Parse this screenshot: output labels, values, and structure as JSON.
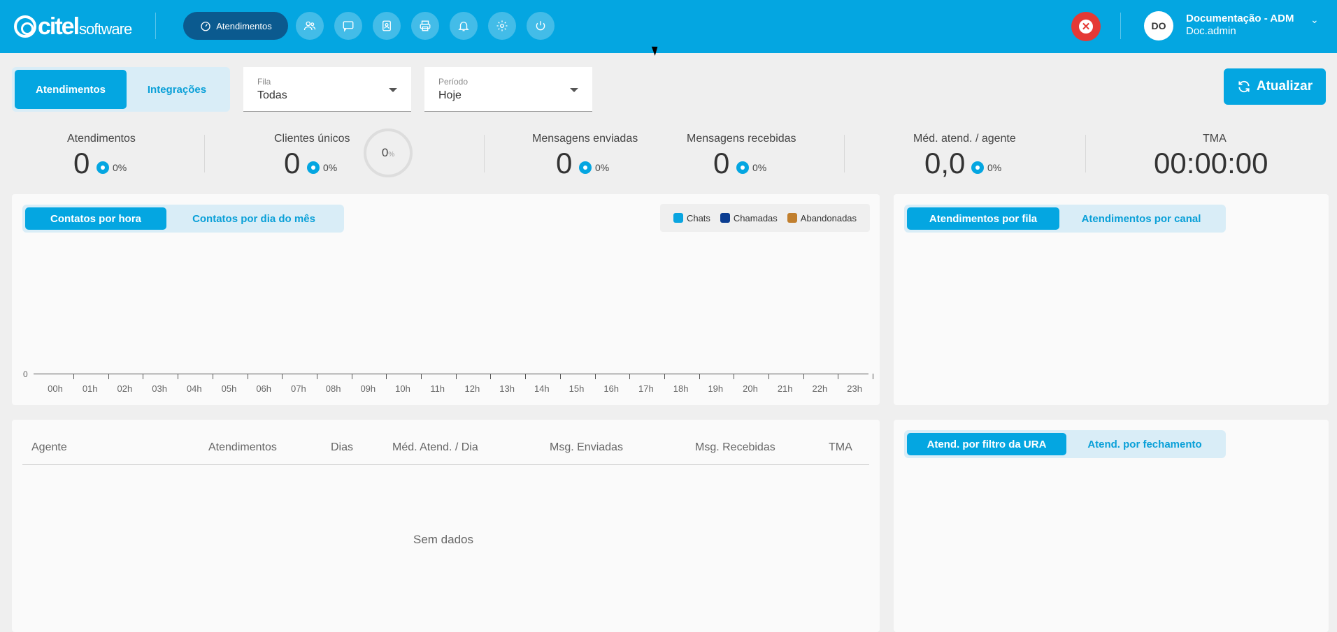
{
  "brand": {
    "name": "citel",
    "suffix": "software"
  },
  "header": {
    "active_nav_label": "Atendimentos",
    "nav_icons": [
      "users-icon",
      "chat-icon",
      "contacts-icon",
      "printer-icon",
      "bell-icon",
      "gear-icon",
      "power-icon"
    ],
    "close_icon": "x-circle-icon",
    "user_initials": "DO",
    "user_name": "Documentação - ADM",
    "user_login": "Doc.admin"
  },
  "main_tabs": {
    "tab1": "Atendimentos",
    "tab2": "Integrações",
    "active": "Atendimentos"
  },
  "filters": {
    "queue": {
      "label": "Fila",
      "value": "Todas"
    },
    "period": {
      "label": "Período",
      "value": "Hoje"
    }
  },
  "refresh_label": "Atualizar",
  "stats": {
    "atendimentos": {
      "title": "Atendimentos",
      "value": "0",
      "pct": "0%"
    },
    "clientes": {
      "title": "Clientes únicos",
      "value": "0",
      "pct": "0%",
      "ring_value": "0",
      "ring_unit": "%"
    },
    "enviadas": {
      "title": "Mensagens enviadas",
      "value": "0",
      "pct": "0%"
    },
    "recebidas": {
      "title": "Mensagens recebidas",
      "value": "0",
      "pct": "0%"
    },
    "media": {
      "title": "Méd. atend. / agente",
      "value": "0,0",
      "pct": "0%"
    },
    "tma": {
      "title": "TMA",
      "value": "00:00:00"
    }
  },
  "contacts_chart": {
    "tab1": "Contatos por hora",
    "tab2": "Contatos por dia do mês",
    "legend": {
      "chats": "Chats",
      "calls": "Chamadas",
      "abandoned": "Abandonadas"
    },
    "colors": {
      "chats": "#0aa5e0",
      "calls": "#0b3d91",
      "abandoned": "#c17f2e"
    },
    "y_zero": "0"
  },
  "chart_data": {
    "type": "bar",
    "categories": [
      "00h",
      "01h",
      "02h",
      "03h",
      "04h",
      "05h",
      "06h",
      "07h",
      "08h",
      "09h",
      "10h",
      "11h",
      "12h",
      "13h",
      "14h",
      "15h",
      "16h",
      "17h",
      "18h",
      "19h",
      "20h",
      "21h",
      "22h",
      "23h"
    ],
    "series": [
      {
        "name": "Chats",
        "values": [
          0,
          0,
          0,
          0,
          0,
          0,
          0,
          0,
          0,
          0,
          0,
          0,
          0,
          0,
          0,
          0,
          0,
          0,
          0,
          0,
          0,
          0,
          0,
          0
        ]
      },
      {
        "name": "Chamadas",
        "values": [
          0,
          0,
          0,
          0,
          0,
          0,
          0,
          0,
          0,
          0,
          0,
          0,
          0,
          0,
          0,
          0,
          0,
          0,
          0,
          0,
          0,
          0,
          0,
          0
        ]
      },
      {
        "name": "Abandonadas",
        "values": [
          0,
          0,
          0,
          0,
          0,
          0,
          0,
          0,
          0,
          0,
          0,
          0,
          0,
          0,
          0,
          0,
          0,
          0,
          0,
          0,
          0,
          0,
          0,
          0
        ]
      }
    ],
    "legend": "top-right"
  },
  "right_top_tabs": {
    "tab1": "Atendimentos por fila",
    "tab2": "Atendimentos por canal"
  },
  "right_bottom_tabs": {
    "tab1": "Atend. por filtro da URA",
    "tab2": "Atend. por fechamento"
  },
  "agent_table": {
    "headers": [
      "Agente",
      "Atendimentos",
      "Dias",
      "Méd. Atend. / Dia",
      "Msg. Enviadas",
      "Msg. Recebidas",
      "TMA"
    ],
    "empty_text": "Sem dados"
  }
}
